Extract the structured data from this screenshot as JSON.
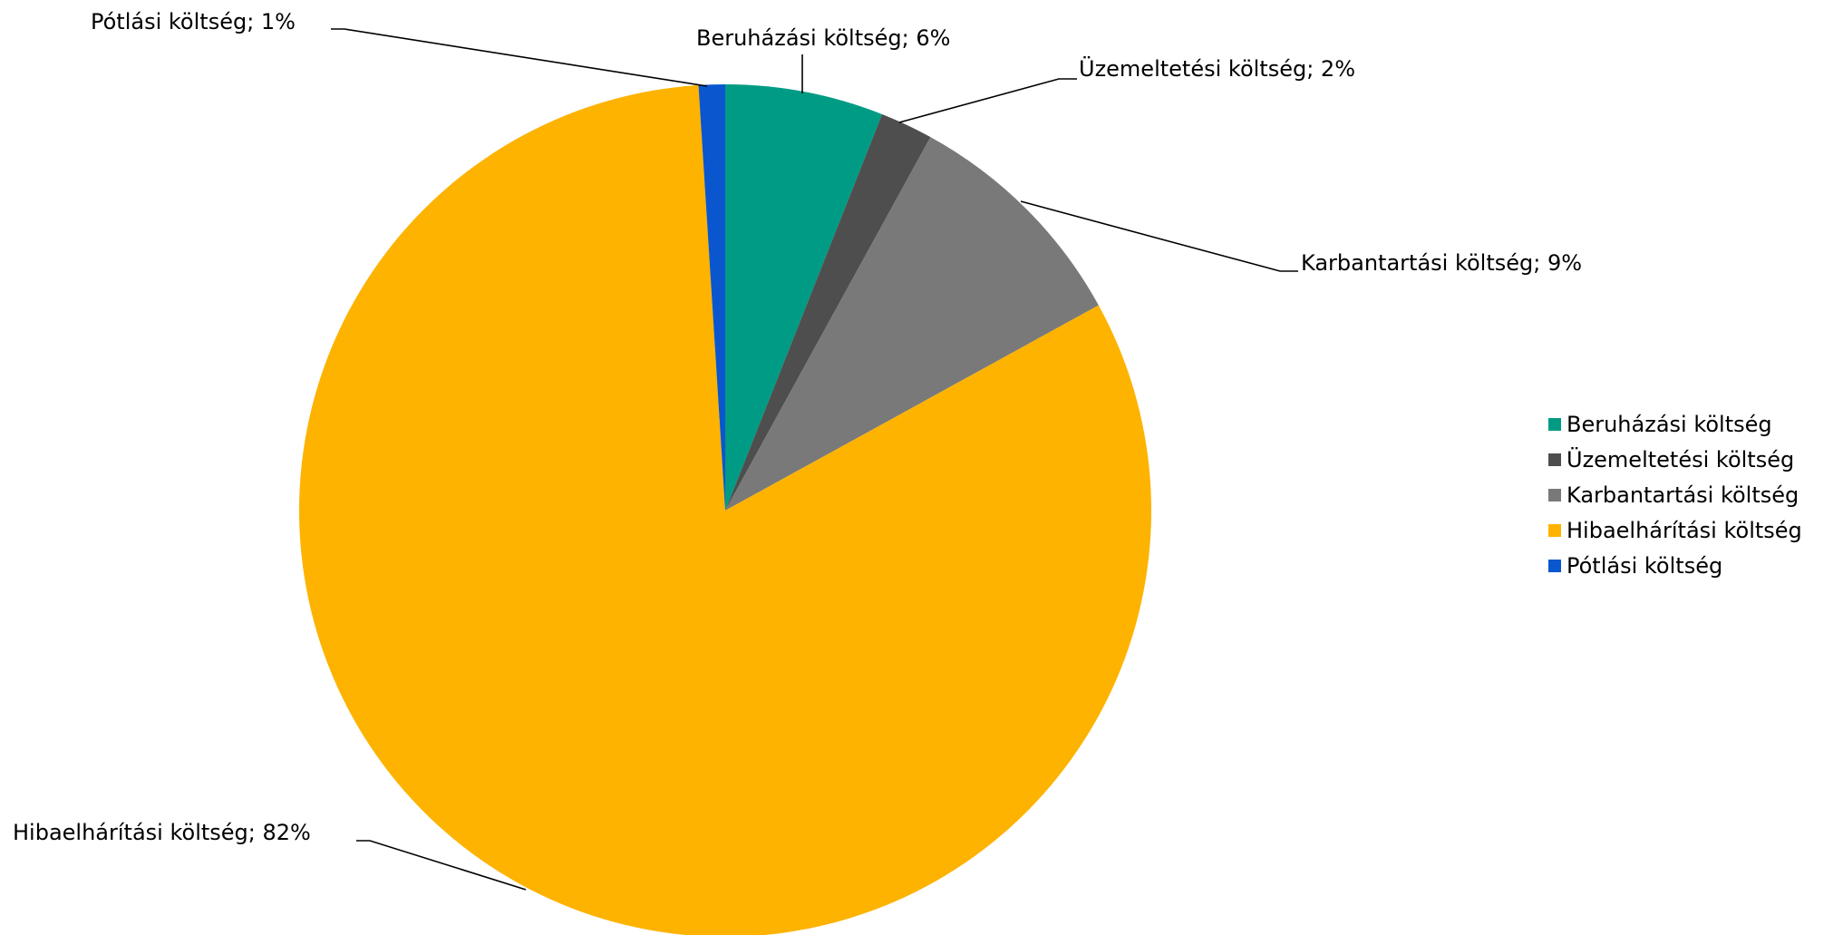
{
  "chart_data": {
    "type": "pie",
    "title": "",
    "series": [
      {
        "name": "",
        "values": [
          6,
          2,
          9,
          82,
          1
        ]
      }
    ],
    "categories": [
      "Beruházási költség",
      "Üzemeltetési költség",
      "Karbantartási költség",
      "Hibaelhárítási költség",
      "Pótlási költség"
    ],
    "slices": [
      {
        "label": "Beruházási költség",
        "value": 6,
        "display": "Beruházási költség; 6%",
        "color": "#009b84"
      },
      {
        "label": "Üzemeltetési költség",
        "value": 2,
        "display": "Üzemeltetési költség; 2%",
        "color": "#4e4e4e"
      },
      {
        "label": "Karbantartási költség",
        "value": 9,
        "display": "Karbantartási költség; 9%",
        "color": "#797979"
      },
      {
        "label": "Hibaelhárítási költség",
        "value": 82,
        "display": "Hibaelhárítási költség; 82%",
        "color": "#fdb300"
      },
      {
        "label": "Pótlási költség",
        "value": 1,
        "display": "Pótlási költség; 1%",
        "color": "#0a56cf"
      }
    ],
    "start_angle": "12 o'clock",
    "direction": "clockwise",
    "legend": {
      "placement": "right",
      "entries": [
        "Beruházási költség",
        "Üzemeltetési költség",
        "Karbantartási költség",
        "Hibaelhárítási költség",
        "Pótlási költség"
      ]
    },
    "data_labels": "outside with leader lines"
  }
}
